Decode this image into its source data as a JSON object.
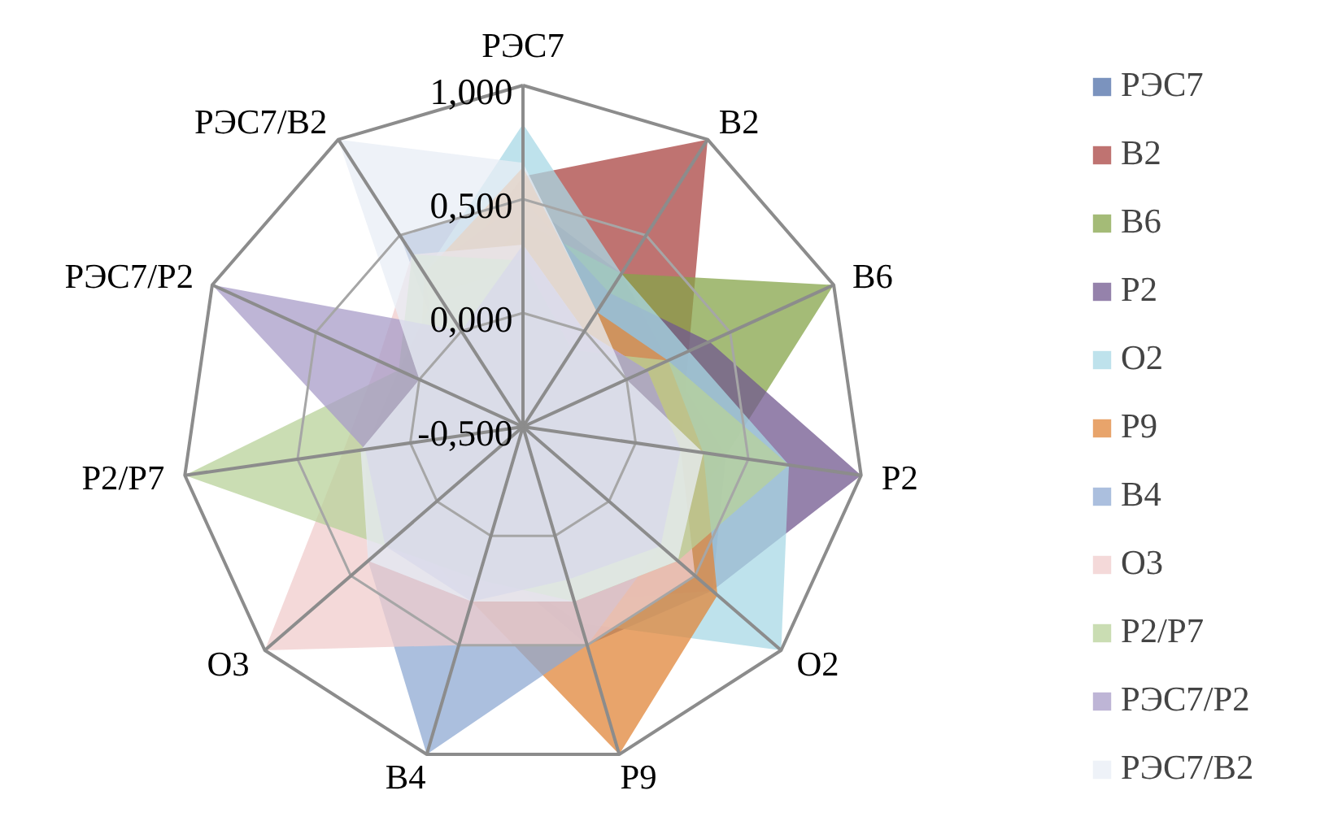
{
  "chart_data": {
    "type": "radar",
    "categories": [
      "РЭС7",
      "В2",
      "В6",
      "Р2",
      "О2",
      "Р9",
      "В4",
      "О3",
      "Р2/Р7",
      "РЭС7/Р2",
      "РЭС7/В2"
    ],
    "ylim": [
      -0.5,
      1.0
    ],
    "yticks": [
      {
        "value": -0.5,
        "label": "-0,500"
      },
      {
        "value": 0.0,
        "label": "0,000"
      },
      {
        "value": 0.5,
        "label": "0,500"
      },
      {
        "value": 1.0,
        "label": "1,000"
      }
    ],
    "grid": true,
    "legend": "right",
    "series": [
      {
        "name": "РЭС7",
        "color": "#4f6fa8",
        "values": [
          0.5,
          0.3,
          0.2,
          0.4,
          0.6,
          0.5,
          0.1,
          0.2,
          0.0,
          -0.2,
          0.5
        ]
      },
      {
        "name": "В2",
        "color": "#a94442",
        "values": [
          0.6,
          1.0,
          0.3,
          0.2,
          0.1,
          0.0,
          -0.2,
          -0.1,
          -0.3,
          -0.1,
          0.2
        ]
      },
      {
        "name": "В6",
        "color": "#86a44a",
        "values": [
          0.4,
          0.3,
          1.0,
          0.4,
          0.3,
          0.1,
          -0.1,
          0.0,
          0.1,
          -0.2,
          0.1
        ]
      },
      {
        "name": "Р2",
        "color": "#71588f",
        "values": [
          0.5,
          0.2,
          0.4,
          1.0,
          0.6,
          0.3,
          0.0,
          0.1,
          0.2,
          -0.1,
          0.3
        ]
      },
      {
        "name": "О2",
        "color": "#a8d8e6",
        "values": [
          0.83,
          0.3,
          0.3,
          0.68,
          1.0,
          0.4,
          0.1,
          0.2,
          0.0,
          -0.1,
          0.3
        ]
      },
      {
        "name": "Р9",
        "color": "#e0853a",
        "values": [
          0.64,
          0.1,
          0.2,
          0.3,
          0.63,
          1.0,
          0.3,
          0.2,
          -0.1,
          0.0,
          0.3
        ]
      },
      {
        "name": "В4",
        "color": "#8fa9d3",
        "values": [
          0.2,
          -0.1,
          0.0,
          0.1,
          0.3,
          0.5,
          1.0,
          0.4,
          0.2,
          0.1,
          0.2
        ]
      },
      {
        "name": "О3",
        "color": "#f0cccc",
        "values": [
          0.3,
          0.0,
          0.1,
          0.2,
          0.5,
          0.5,
          0.5,
          1.0,
          0.3,
          0.2,
          0.4
        ]
      },
      {
        "name": "Р2/Р7",
        "color": "#b8d19a",
        "values": [
          0.23,
          -0.1,
          0.2,
          0.68,
          0.4,
          0.3,
          0.2,
          0.3,
          1.0,
          0.1,
          0.4
        ]
      },
      {
        "name": "РЭС7/Р2",
        "color": "#a89cc8",
        "values": [
          0.3,
          0.0,
          0.1,
          0.2,
          0.3,
          0.2,
          0.3,
          0.3,
          0.2,
          1.0,
          0.0
        ]
      },
      {
        "name": "РЭС7/В2",
        "color": "#e8eef6",
        "values": [
          0.66,
          0.1,
          0.0,
          0.3,
          0.4,
          0.3,
          0.3,
          0.4,
          0.22,
          0.0,
          1.0
        ]
      }
    ]
  }
}
